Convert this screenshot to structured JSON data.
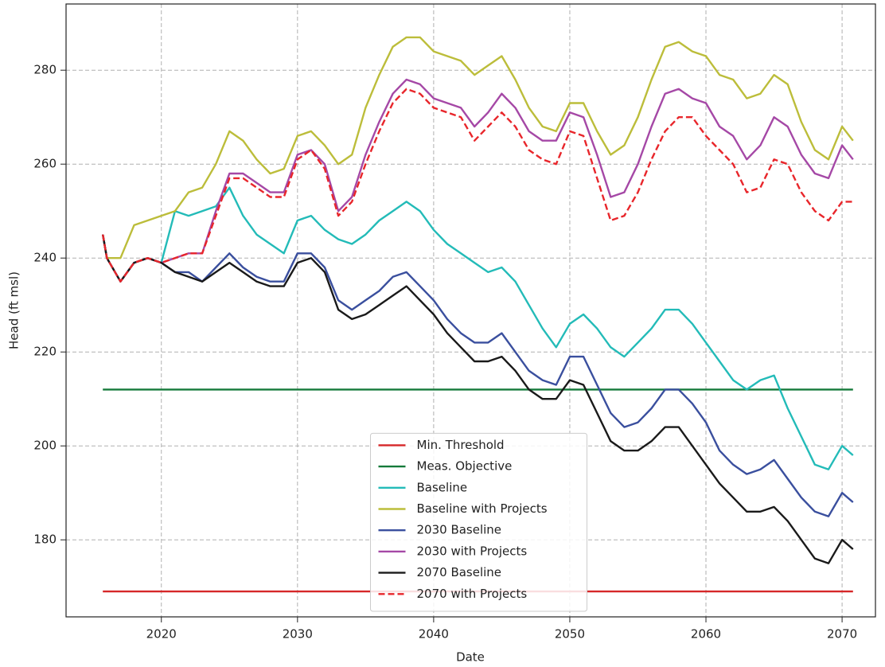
{
  "chart_data": {
    "type": "line",
    "xlabel": "Date",
    "ylabel": "Head (ft msl)",
    "x": [
      2015.7,
      2016,
      2017,
      2018,
      2019,
      2020,
      2021,
      2022,
      2023,
      2024,
      2025,
      2026,
      2027,
      2028,
      2029,
      2030,
      2031,
      2032,
      2033,
      2034,
      2035,
      2036,
      2037,
      2038,
      2039,
      2040,
      2041,
      2042,
      2043,
      2044,
      2045,
      2046,
      2047,
      2048,
      2049,
      2050,
      2051,
      2052,
      2053,
      2054,
      2055,
      2056,
      2057,
      2058,
      2059,
      2060,
      2061,
      2062,
      2063,
      2064,
      2065,
      2066,
      2067,
      2068,
      2069,
      2070,
      2070.8
    ],
    "xlim": [
      2013.0,
      2072.45
    ],
    "xticks": [
      2020,
      2030,
      2040,
      2050,
      2060,
      2070
    ],
    "ylim": [
      163.6,
      294.1
    ],
    "yticks": [
      180,
      200,
      220,
      240,
      260,
      280
    ],
    "grid": true,
    "legend": "lower center",
    "series": [
      {
        "name": "Min. Threshold",
        "color": "#d62728",
        "x": [
          2015.7,
          2070.8
        ],
        "values": [
          169,
          169
        ]
      },
      {
        "name": "Meas. Objective",
        "color": "#157a3a",
        "x": [
          2015.7,
          2070.8
        ],
        "values": [
          212,
          212
        ]
      },
      {
        "name": "Baseline",
        "color": "#23bbb8",
        "values": [
          245,
          240,
          235,
          239,
          240,
          239,
          250,
          249,
          250,
          251,
          255,
          249,
          245,
          243,
          241,
          248,
          249,
          246,
          244,
          243,
          245,
          248,
          250,
          252,
          250,
          246,
          243,
          241,
          239,
          237,
          238,
          235,
          230,
          225,
          221,
          226,
          228,
          225,
          221,
          219,
          222,
          225,
          229,
          229,
          226,
          222,
          218,
          214,
          212,
          214,
          215,
          208,
          202,
          196,
          195,
          200,
          198
        ]
      },
      {
        "name": "Baseline with Projects",
        "color": "#bcbd3a",
        "values": [
          245,
          240,
          240,
          247,
          248,
          249,
          250,
          254,
          255,
          260,
          267,
          265,
          261,
          258,
          259,
          266,
          267,
          264,
          260,
          262,
          272,
          279,
          285,
          287,
          287,
          284,
          283,
          282,
          279,
          281,
          283,
          278,
          272,
          268,
          267,
          273,
          273,
          267,
          262,
          264,
          270,
          278,
          285,
          286,
          284,
          283,
          279,
          278,
          274,
          275,
          279,
          277,
          269,
          263,
          261,
          268,
          265
        ]
      },
      {
        "name": "2030 Baseline",
        "color": "#3a4f9e",
        "values": [
          245,
          240,
          235,
          239,
          240,
          239,
          237,
          237,
          235,
          238,
          241,
          238,
          236,
          235,
          235,
          241,
          241,
          238,
          231,
          229,
          231,
          233,
          236,
          237,
          234,
          231,
          227,
          224,
          222,
          222,
          224,
          220,
          216,
          214,
          213,
          219,
          219,
          213,
          207,
          204,
          205,
          208,
          212,
          212,
          209,
          205,
          199,
          196,
          194,
          195,
          197,
          193,
          189,
          186,
          185,
          190,
          188
        ]
      },
      {
        "name": "2030 with Projects",
        "color": "#a548a6",
        "values": [
          245,
          240,
          235,
          239,
          240,
          239,
          240,
          241,
          241,
          250,
          258,
          258,
          256,
          254,
          254,
          262,
          263,
          260,
          250,
          253,
          262,
          269,
          275,
          278,
          277,
          274,
          273,
          272,
          268,
          271,
          275,
          272,
          267,
          265,
          265,
          271,
          270,
          262,
          253,
          254,
          260,
          268,
          275,
          276,
          274,
          273,
          268,
          266,
          261,
          264,
          270,
          268,
          262,
          258,
          257,
          264,
          261
        ]
      },
      {
        "name": "2070 Baseline",
        "color": "#1a1a1a",
        "values": [
          245,
          240,
          235,
          239,
          240,
          239,
          237,
          236,
          235,
          237,
          239,
          237,
          235,
          234,
          234,
          239,
          240,
          237,
          229,
          227,
          228,
          230,
          232,
          234,
          231,
          228,
          224,
          221,
          218,
          218,
          219,
          216,
          212,
          210,
          210,
          214,
          213,
          207,
          201,
          199,
          199,
          201,
          204,
          204,
          200,
          196,
          192,
          189,
          186,
          186,
          187,
          184,
          180,
          176,
          175,
          180,
          178
        ]
      },
      {
        "name": "2070 with Projects",
        "color": "#e8262b",
        "linestyle": "dashed",
        "values": [
          245,
          240,
          235,
          239,
          240,
          239,
          240,
          241,
          241,
          249,
          257,
          257,
          255,
          253,
          253,
          261,
          263,
          259,
          249,
          252,
          260,
          267,
          273,
          276,
          275,
          272,
          271,
          270,
          265,
          268,
          271,
          268,
          263,
          261,
          260,
          267,
          266,
          257,
          248,
          249,
          254,
          261,
          267,
          270,
          270,
          266,
          263,
          260,
          254,
          255,
          261,
          260,
          254,
          250,
          248,
          252,
          252
        ]
      }
    ]
  }
}
